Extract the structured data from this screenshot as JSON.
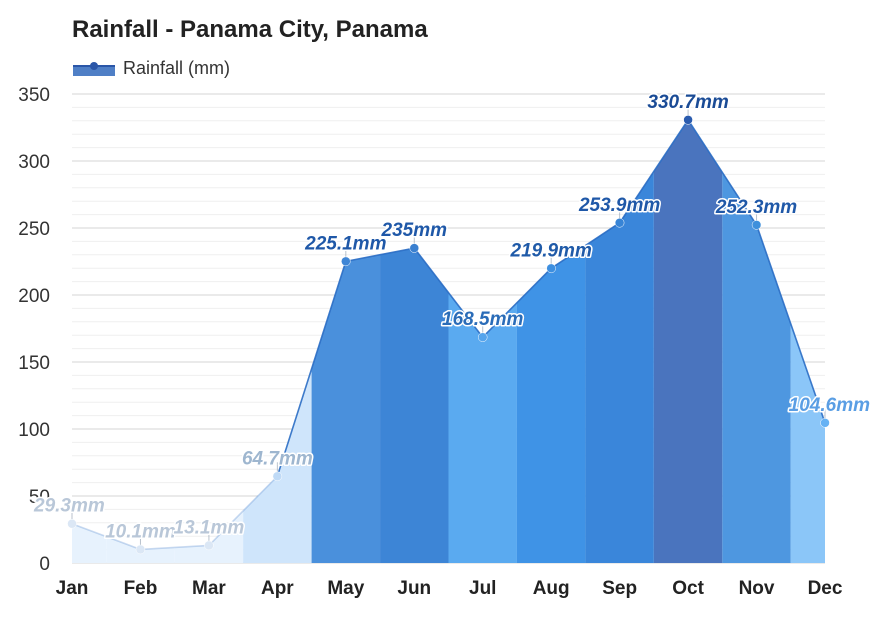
{
  "chart_data": {
    "type": "area",
    "title": "Rainfall - Panama City, Panama",
    "categories": [
      "Jan",
      "Feb",
      "Mar",
      "Apr",
      "May",
      "Jun",
      "Jul",
      "Aug",
      "Sep",
      "Oct",
      "Nov",
      "Dec"
    ],
    "series": [
      {
        "name": "Rainfall (mm)",
        "values": [
          29.3,
          10.1,
          13.1,
          64.7,
          225.1,
          235,
          168.5,
          219.9,
          253.9,
          330.7,
          252.3,
          104.6
        ],
        "labels": [
          "29.3mm",
          "10.1mm",
          "13.1mm",
          "64.7mm",
          "225.1mm",
          "235mm",
          "168.5mm",
          "219.9mm",
          "253.9mm",
          "330.7mm",
          "252.3mm",
          "104.6mm"
        ]
      }
    ],
    "ylim": [
      0,
      350
    ],
    "yticks": [
      0,
      50,
      100,
      150,
      200,
      250,
      300,
      350
    ],
    "ytick_labels": [
      "0",
      "50",
      "100",
      "150",
      "200",
      "250",
      "300",
      "350"
    ],
    "xlabel": "",
    "ylabel": "",
    "grid": true,
    "legend": "top-left"
  },
  "colors": {
    "month_fills": [
      "#e7f2fd",
      "#e7f2fd",
      "#e7f2fd",
      "#cfe5fb",
      "#4a90dc",
      "#3d85d6",
      "#5aaaf0",
      "#3f93e6",
      "#3a86da",
      "#4a74be",
      "#4e97e0",
      "#8bc6f8"
    ],
    "point_colors": [
      "#dbe7f5",
      "#dbe7f5",
      "#dbe7f5",
      "#bfdaf6",
      "#3f86d6",
      "#3a80d0",
      "#55a4ec",
      "#3d8fe0",
      "#3784d6",
      "#2a5bae",
      "#3f90dc",
      "#66b2f4"
    ],
    "label_colors": [
      "#b9c7d8",
      "#b9c7d8",
      "#b9c7d8",
      "#9eb6cf",
      "#1f58a8",
      "#1f58a8",
      "#2a6cb8",
      "#1f5aa8",
      "#1f58a8",
      "#1a4b96",
      "#1f58a8",
      "#5a9ee4"
    ],
    "line": "#2a6dc4",
    "legend_swatch": "#4f7fc6",
    "legend_line": "#2a56a8"
  }
}
